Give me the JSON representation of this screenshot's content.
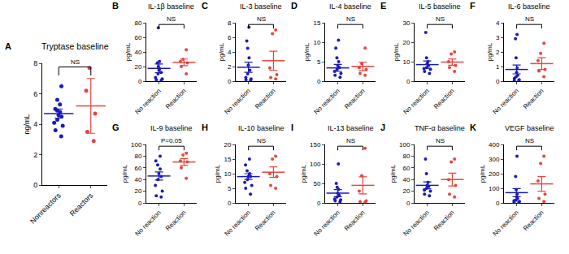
{
  "chart_data": [
    {
      "panel": "A",
      "type": "scatter",
      "title": "Tryptase baseline",
      "ylabel": "ng/mL",
      "categories": [
        "Nonreactors",
        "Reactors"
      ],
      "colors": [
        "#1c1cb8",
        "#e8453c"
      ],
      "values": [
        [
          6.5,
          5.6,
          5.3,
          5.0,
          4.9,
          4.8,
          4.6,
          4.5,
          4.3,
          4.1,
          3.9,
          3.6,
          3.2
        ],
        [
          7.7,
          6.2,
          4.7,
          3.5,
          2.9
        ]
      ],
      "mean": [
        4.7,
        5.2
      ],
      "error": [
        0.3,
        1.8
      ],
      "ylim": [
        0,
        8
      ],
      "yticks": [
        0,
        2,
        4,
        6,
        8
      ],
      "annotation": "NS"
    },
    {
      "panel": "B",
      "type": "scatter",
      "title": "IL-1β baseline",
      "ylabel": "pg/mL",
      "categories": [
        "No reaction",
        "Reaction"
      ],
      "colors": [
        "#1c1cb8",
        "#e8453c"
      ],
      "values": [
        [
          73,
          27,
          25,
          20,
          17,
          15,
          12,
          10,
          5,
          3,
          2,
          1
        ],
        [
          43,
          30,
          27,
          25,
          20,
          10
        ]
      ],
      "mean": [
        17.5,
        25.8
      ],
      "error": [
        6,
        4.5
      ],
      "ylim": [
        0,
        80
      ],
      "yticks": [
        0,
        20,
        40,
        60,
        80
      ],
      "annotation": "NS"
    },
    {
      "panel": "C",
      "type": "scatter",
      "title": "IL-3 baseline",
      "ylabel": "pg/mL",
      "categories": [
        "No reaction",
        "Reaction"
      ],
      "colors": [
        "#1c1cb8",
        "#e8453c"
      ],
      "values": [
        [
          7.4,
          5.5,
          4.5,
          3.2,
          2.2,
          1.5,
          1.0,
          0.5,
          0.3,
          0.2,
          0.1
        ],
        [
          7.0,
          6.5,
          1.8,
          0.9,
          0.5,
          0.3
        ]
      ],
      "mean": [
        1.9,
        2.8
      ],
      "error": [
        0.7,
        1.3
      ],
      "ylim": [
        0,
        8
      ],
      "yticks": [
        0,
        2,
        4,
        6,
        8
      ],
      "annotation": "NS"
    },
    {
      "panel": "D",
      "type": "scatter",
      "title": "IL-4 baseline",
      "ylabel": "pg/mL",
      "categories": [
        "No reaction",
        "Reaction"
      ],
      "colors": [
        "#1c1cb8",
        "#e8453c"
      ],
      "values": [
        [
          10.5,
          8.5,
          6,
          5,
          4,
          3.5,
          3,
          2.5,
          2,
          1.5,
          1
        ],
        [
          8.5,
          4.5,
          3.5,
          3,
          2,
          1.5
        ]
      ],
      "mean": [
        3.4,
        3.8
      ],
      "error": [
        0.9,
        1.1
      ],
      "ylim": [
        0,
        15
      ],
      "yticks": [
        0,
        5,
        10,
        15
      ],
      "annotation": "NS"
    },
    {
      "panel": "E",
      "type": "scatter",
      "title": "IL-5 baseline",
      "ylabel": "pg/mL",
      "categories": [
        "No reaction",
        "Reaction"
      ],
      "colors": [
        "#1c1cb8",
        "#e8453c"
      ],
      "values": [
        [
          25,
          12,
          10,
          9,
          8,
          7,
          6.5,
          6,
          5,
          4
        ],
        [
          15,
          14,
          10,
          8,
          7,
          5
        ]
      ],
      "mean": [
        8.5,
        9.8
      ],
      "error": [
        1.9,
        1.6
      ],
      "ylim": [
        0,
        30
      ],
      "yticks": [
        0,
        10,
        20,
        30
      ],
      "annotation": "NS"
    },
    {
      "panel": "F",
      "type": "scatter",
      "title": "IL-6 baseline",
      "ylabel": "pg/mL",
      "categories": [
        "No reaction",
        "Reaction"
      ],
      "colors": [
        "#1c1cb8",
        "#e8453c"
      ],
      "values": [
        [
          3.2,
          2.9,
          1.6,
          0.9,
          0.6,
          0.4,
          0.3,
          0.2,
          0.1,
          0.05,
          0.05
        ],
        [
          2.6,
          1.9,
          1.4,
          0.8,
          0.7,
          0.3
        ]
      ],
      "mean": [
        0.8,
        1.2
      ],
      "error": [
        0.3,
        0.4
      ],
      "ylim": [
        0,
        4
      ],
      "yticks": [
        0,
        1,
        2,
        3,
        4
      ],
      "annotation": "NS"
    },
    {
      "panel": "G",
      "type": "scatter",
      "title": "IL-9 baseline",
      "ylabel": "pg/mL",
      "categories": [
        "No reaction",
        "Reaction"
      ],
      "colors": [
        "#1c1cb8",
        "#e8453c"
      ],
      "values": [
        [
          80,
          72,
          65,
          58,
          50,
          45,
          40,
          30,
          20,
          12,
          10
        ],
        [
          85,
          82,
          72,
          70,
          60,
          42
        ]
      ],
      "mean": [
        46,
        70
      ],
      "error": [
        7,
        6
      ],
      "ylim": [
        0,
        100
      ],
      "yticks": [
        0,
        20,
        40,
        60,
        80,
        100
      ],
      "annotation": "P=0.05"
    },
    {
      "panel": "H",
      "type": "scatter",
      "title": "IL-10 baseline",
      "ylabel": "pg/mL",
      "categories": [
        "No reaction",
        "Reaction"
      ],
      "colors": [
        "#1c1cb8",
        "#e8453c"
      ],
      "values": [
        [
          15,
          13,
          11,
          10,
          9,
          9,
          8,
          7,
          6,
          5,
          3
        ],
        [
          16,
          15,
          10,
          9,
          6,
          5
        ]
      ],
      "mean": [
        9,
        10.5
      ],
      "error": [
        1,
        1.8
      ],
      "ylim": [
        0,
        20
      ],
      "yticks": [
        0,
        5,
        10,
        15,
        20
      ],
      "annotation": "NS"
    },
    {
      "panel": "I",
      "type": "scatter",
      "title": "IL-13 baseline",
      "ylabel": "pg/mL",
      "categories": [
        "No reaction",
        "Reaction"
      ],
      "colors": [
        "#1c1cb8",
        "#e8453c"
      ],
      "values": [
        [
          100,
          50,
          40,
          35,
          25,
          20,
          15,
          10,
          8,
          5,
          3
        ],
        [
          140,
          70,
          30,
          5,
          3,
          2
        ]
      ],
      "mean": [
        25,
        45
      ],
      "error": [
        9,
        22
      ],
      "ylim": [
        0,
        150
      ],
      "yticks": [
        0,
        50,
        100,
        150
      ],
      "annotation": "NS"
    },
    {
      "panel": "J",
      "type": "scatter",
      "title": "TNF-α baseline",
      "ylabel": "pg/mL",
      "categories": [
        "No reaction",
        "Reaction"
      ],
      "colors": [
        "#1c1cb8",
        "#e8453c"
      ],
      "values": [
        [
          75,
          50,
          35,
          30,
          28,
          25,
          22,
          20,
          15,
          12
        ],
        [
          75,
          70,
          40,
          30,
          15,
          10
        ]
      ],
      "mean": [
        30,
        40
      ],
      "error": [
        6,
        11
      ],
      "ylim": [
        0,
        100
      ],
      "yticks": [
        0,
        20,
        40,
        60,
        80,
        100
      ],
      "annotation": "NS"
    },
    {
      "panel": "K",
      "type": "scatter",
      "title": "VEGF baseline",
      "ylabel": "pg/mL",
      "categories": [
        "No reaction",
        "Reaction"
      ],
      "colors": [
        "#1c1cb8",
        "#e8453c"
      ],
      "values": [
        [
          320,
          180,
          90,
          60,
          40,
          30,
          20,
          15,
          10,
          5,
          3
        ],
        [
          320,
          270,
          150,
          60,
          30,
          10
        ]
      ],
      "mean": [
        70,
        130
      ],
      "error": [
        28,
        50
      ],
      "ylim": [
        0,
        400
      ],
      "yticks": [
        0,
        100,
        200,
        300,
        400
      ],
      "annotation": "NS"
    }
  ]
}
